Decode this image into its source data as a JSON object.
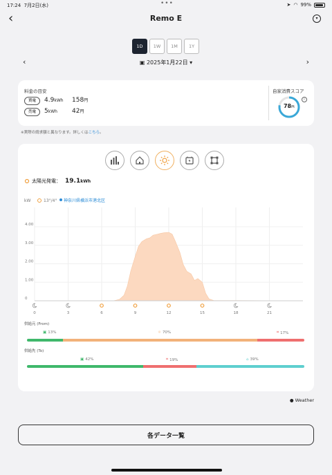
{
  "status_bar": {
    "time": "17:24",
    "date": "7月2日(水)",
    "battery": "99%"
  },
  "header": {
    "back_glyph": "‹",
    "title": "Remo E"
  },
  "range_tabs": [
    "1D",
    "1W",
    "1M",
    "1Y"
  ],
  "range_selected": "1D",
  "date_nav": {
    "date": "2025年1月22日",
    "prev": "‹",
    "next": "›"
  },
  "summary": {
    "label": "料金の目安",
    "rows": [
      {
        "tag": "買電",
        "kwh": "4.9",
        "kwh_unit": "kWh",
        "yen": "158",
        "yen_unit": "円"
      },
      {
        "tag": "売電",
        "kwh": "5",
        "kwh_unit": "kWh",
        "yen": "42",
        "yen_unit": "円"
      }
    ],
    "score_label": "自家消費スコア",
    "score": "78",
    "score_unit": "Pt",
    "score_fraction": 0.78
  },
  "note": {
    "text": "※実際の請求額と異なります。詳しくは",
    "link": "こちら",
    "end": "。"
  },
  "main": {
    "tabs": [
      "usage-bars",
      "house",
      "sun",
      "battery",
      "grid"
    ],
    "active_tab": "sun",
    "generation_label": "太陽光発電：",
    "generation_value": "19.1",
    "generation_unit": "kWh"
  },
  "chart_data": {
    "type": "area",
    "ylabel": "kW",
    "weather_temp": "13°/4°",
    "location": "神奈川県横浜市港北区",
    "x_ticks": [
      "0",
      "3",
      "6",
      "9",
      "12",
      "15",
      "18",
      "21"
    ],
    "weather_icons": [
      "moon",
      "moon",
      "sun",
      "sun",
      "sun",
      "sun",
      "moon",
      "moon"
    ],
    "y_ticks": [
      "0",
      "1.00",
      "2.00",
      "3.00",
      "4.00"
    ],
    "ylim": [
      0,
      4.3
    ],
    "xlim": [
      0,
      24
    ],
    "color": "#fcd9c0",
    "x": [
      0,
      7.0,
      7.3,
      7.6,
      8.0,
      8.3,
      8.6,
      9.0,
      9.3,
      9.6,
      10.0,
      10.3,
      10.6,
      11.0,
      11.3,
      11.6,
      12.0,
      12.3,
      12.6,
      13.0,
      13.3,
      13.6,
      14.0,
      14.3,
      14.6,
      15.0,
      15.3,
      15.6,
      16.0,
      24
    ],
    "y": [
      0,
      0,
      0.03,
      0.08,
      0.3,
      0.8,
      1.6,
      2.4,
      2.95,
      3.2,
      3.35,
      3.4,
      3.55,
      3.6,
      3.65,
      3.68,
      3.7,
      3.6,
      3.2,
      2.6,
      1.95,
      1.6,
      1.45,
      1.1,
      1.2,
      1.0,
      0.4,
      0.1,
      0.02,
      0
    ]
  },
  "mix_from": {
    "title": "供給元 (From)",
    "segments": [
      {
        "label": "13%",
        "value": 13,
        "color": "#3fb86b",
        "icon": "battery"
      },
      {
        "label": "70%",
        "value": 70,
        "color": "#f2b27a",
        "icon": "sun"
      },
      {
        "label": "17%",
        "value": 17,
        "color": "#ef6f6f",
        "icon": "grid"
      }
    ]
  },
  "mix_to": {
    "title": "供給先 (To)",
    "segments": [
      {
        "label": "42%",
        "value": 42,
        "color": "#3fb86b",
        "icon": "battery"
      },
      {
        "label": "19%",
        "value": 19,
        "color": "#ef6f6f",
        "icon": "grid"
      },
      {
        "label": "39%",
        "value": 39,
        "color": "#5ecfcf",
        "icon": "house"
      }
    ]
  },
  "weather_credit": " Weather",
  "data_list_button": "各データ一覧"
}
